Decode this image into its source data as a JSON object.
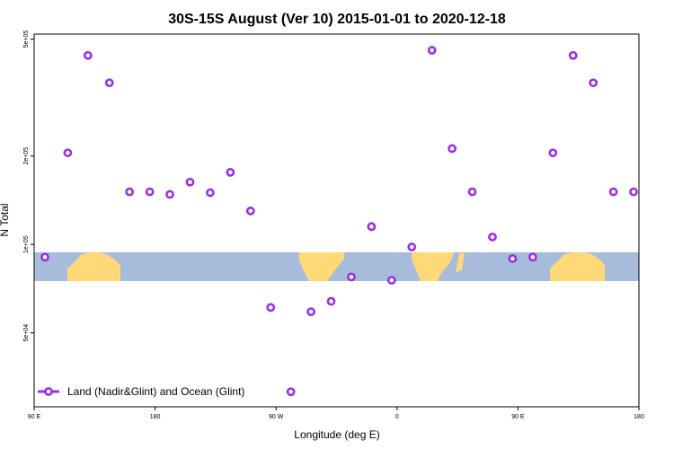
{
  "chart_data": {
    "type": "scatter",
    "title": "30S-15S August (Ver 10)   2015-01-01 to 2020-12-18",
    "xlabel": "Longitude (deg E)",
    "ylabel": "N Total",
    "xlim": [
      90,
      540
    ],
    "ylog": true,
    "ylim": [
      28000,
      520000
    ],
    "x_ticks": [
      {
        "value": 90,
        "label": "90 E"
      },
      {
        "value": 180,
        "label": "180"
      },
      {
        "value": 270,
        "label": "90 W"
      },
      {
        "value": 360,
        "label": "0"
      },
      {
        "value": 450,
        "label": "90 E"
      },
      {
        "value": 540,
        "label": "180"
      }
    ],
    "y_ticks": [
      {
        "value": 50000,
        "label": "5e+04"
      },
      {
        "value": 100000,
        "label": "1e+05"
      },
      {
        "value": 200000,
        "label": "2e+05"
      },
      {
        "value": 500000,
        "label": "5e+05"
      }
    ],
    "map_band": {
      "lat_range": [
        -30,
        -15
      ],
      "ocean_color": "#a7bbdb",
      "land_color": "#ffd977"
    },
    "series": [
      {
        "name": "Land (Nadir&Glint) and Ocean (Glint)",
        "color": "#9b30e0",
        "marker": "open-circle",
        "points": [
          [
            98,
            90500
          ],
          [
            115,
            205000
          ],
          [
            130,
            440000
          ],
          [
            146,
            355000
          ],
          [
            161,
            151000
          ],
          [
            176,
            151000
          ],
          [
            191,
            148000
          ],
          [
            206,
            163000
          ],
          [
            221,
            150000
          ],
          [
            236,
            176000
          ],
          [
            251,
            130000
          ],
          [
            266,
            61000
          ],
          [
            281,
            31500
          ],
          [
            296,
            59000
          ],
          [
            311,
            64000
          ],
          [
            326,
            77500
          ],
          [
            341,
            115000
          ],
          [
            356,
            75500
          ],
          [
            371,
            98000
          ],
          [
            386,
            458000
          ],
          [
            401,
            212000
          ],
          [
            416,
            151000
          ],
          [
            431,
            106000
          ],
          [
            446,
            89500
          ],
          [
            461,
            90500
          ],
          [
            476,
            205000
          ],
          [
            491,
            440000
          ],
          [
            506,
            355000
          ],
          [
            521,
            151000
          ],
          [
            536,
            151000
          ]
        ]
      }
    ],
    "legend": {
      "position": "bottom-left"
    }
  }
}
